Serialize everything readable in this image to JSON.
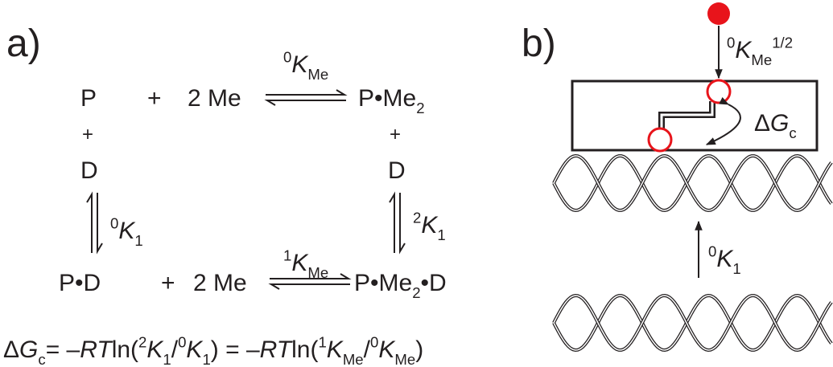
{
  "panel_a": {
    "label": [
      {
        "text": "a)",
        "style": "normal"
      }
    ],
    "top_left": [
      {
        "text": "P",
        "style": "normal"
      }
    ],
    "top_plus": [
      {
        "text": "+",
        "style": "normal"
      }
    ],
    "top_reagent": [
      {
        "text": "2 Me",
        "style": "normal"
      }
    ],
    "top_product": [
      {
        "text": "P•Me",
        "style": "normal"
      },
      {
        "text": "2",
        "style": "sub"
      }
    ],
    "top_constant": [
      {
        "text": "0",
        "style": "sup"
      },
      {
        "text": "K",
        "style": "italic"
      },
      {
        "text": "Me",
        "style": "sub"
      }
    ],
    "left_plus": [
      {
        "text": "+",
        "style": "normal"
      }
    ],
    "right_plus": [
      {
        "text": "+",
        "style": "normal"
      }
    ],
    "left_d": [
      {
        "text": "D",
        "style": "normal"
      }
    ],
    "right_d": [
      {
        "text": "D",
        "style": "normal"
      }
    ],
    "left_constant": [
      {
        "text": "0",
        "style": "sup"
      },
      {
        "text": "K",
        "style": "italic"
      },
      {
        "text": "1",
        "style": "sub"
      }
    ],
    "right_constant": [
      {
        "text": "2",
        "style": "sup"
      },
      {
        "text": "K",
        "style": "italic"
      },
      {
        "text": "1",
        "style": "sub"
      }
    ],
    "bottom_left": [
      {
        "text": "P•D",
        "style": "normal"
      }
    ],
    "bottom_plus": [
      {
        "text": "+",
        "style": "normal"
      }
    ],
    "bottom_reagent": [
      {
        "text": "2 Me",
        "style": "normal"
      }
    ],
    "bottom_product": [
      {
        "text": "P•Me",
        "style": "normal"
      },
      {
        "text": "2",
        "style": "sub"
      },
      {
        "text": "•D",
        "style": "normal"
      }
    ],
    "bottom_constant": [
      {
        "text": "1",
        "style": "sup"
      },
      {
        "text": "K",
        "style": "italic"
      },
      {
        "text": "Me",
        "style": "sub"
      }
    ],
    "equation": [
      {
        "text": "Δ",
        "style": "normal"
      },
      {
        "text": "G",
        "style": "italic"
      },
      {
        "text": "c",
        "style": "sub"
      },
      {
        "text": "= –",
        "style": "normal"
      },
      {
        "text": "RT",
        "style": "italic"
      },
      {
        "text": "ln(",
        "style": "normal"
      },
      {
        "text": "2",
        "style": "sup"
      },
      {
        "text": "K",
        "style": "italic"
      },
      {
        "text": "1",
        "style": "sub"
      },
      {
        "text": "/",
        "style": "normal"
      },
      {
        "text": "0",
        "style": "sup"
      },
      {
        "text": "K",
        "style": "italic"
      },
      {
        "text": "1",
        "style": "sub"
      },
      {
        "text": ") = –",
        "style": "normal"
      },
      {
        "text": "RT",
        "style": "italic"
      },
      {
        "text": "ln(",
        "style": "normal"
      },
      {
        "text": "1",
        "style": "sup"
      },
      {
        "text": "K",
        "style": "italic"
      },
      {
        "text": "Me",
        "style": "sub"
      },
      {
        "text": "/",
        "style": "normal"
      },
      {
        "text": "0",
        "style": "sup"
      },
      {
        "text": "K",
        "style": "italic"
      },
      {
        "text": "Me",
        "style": "sub"
      },
      {
        "text": ")",
        "style": "normal"
      }
    ]
  },
  "panel_b": {
    "label": [
      {
        "text": "b)",
        "style": "normal"
      }
    ],
    "binding_constant": [
      {
        "text": "0",
        "style": "sup"
      },
      {
        "text": "K",
        "style": "italic"
      },
      {
        "text": "Me",
        "style": "sub"
      },
      {
        "text": "1/2",
        "style": "sup"
      }
    ],
    "coupling_energy": [
      {
        "text": "Δ",
        "style": "normal"
      },
      {
        "text": "G",
        "style": "italic"
      },
      {
        "text": "c",
        "style": "sub"
      }
    ],
    "dna_constant": [
      {
        "text": "0",
        "style": "sup"
      },
      {
        "text": "K",
        "style": "italic"
      },
      {
        "text": "1",
        "style": "sub"
      }
    ]
  }
}
